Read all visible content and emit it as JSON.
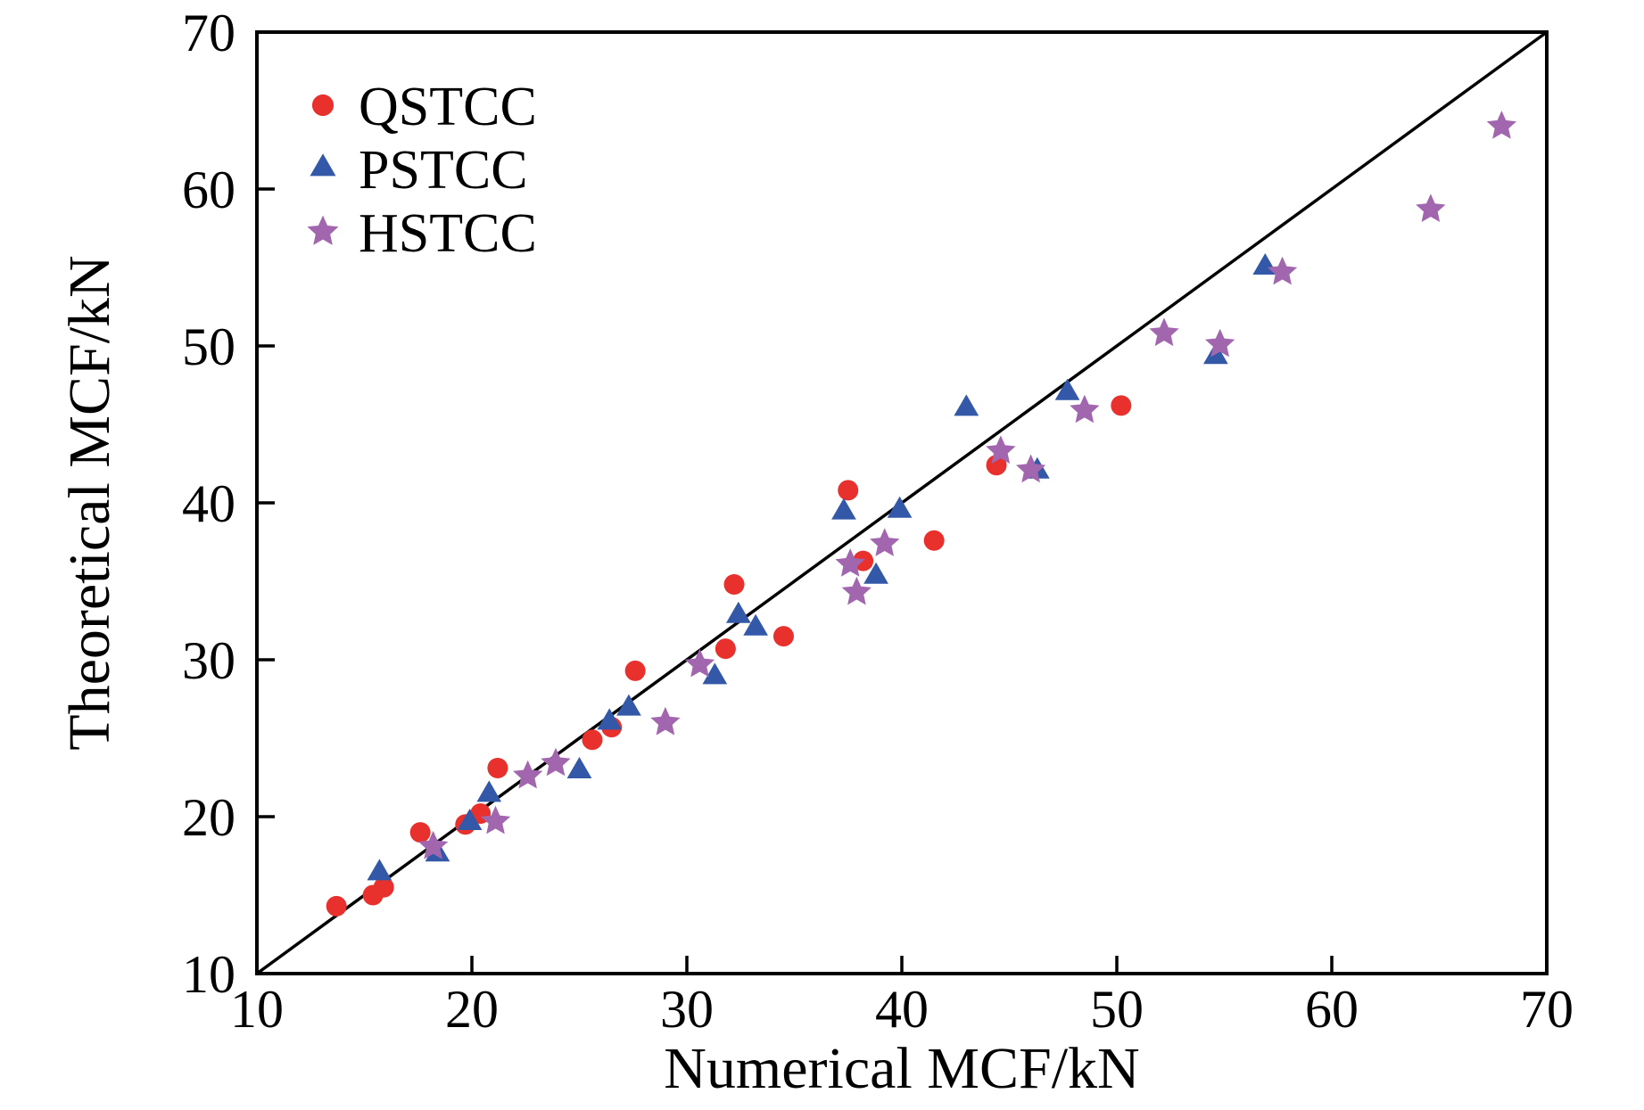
{
  "chart_data": {
    "type": "scatter",
    "title": "",
    "xlabel": "Numerical MCF/kN",
    "ylabel": "Theoretical MCF/kN",
    "xlim": [
      10,
      70
    ],
    "ylim": [
      10,
      70
    ],
    "xticks": [
      10,
      20,
      30,
      40,
      50,
      60,
      70
    ],
    "yticks": [
      10,
      20,
      30,
      40,
      50,
      60,
      70
    ],
    "grid": false,
    "legend_position": "upper-left",
    "axis_color": "#000000",
    "identity_line": {
      "from": [
        10,
        10
      ],
      "to": [
        70,
        70
      ],
      "color": "#000000"
    },
    "series": [
      {
        "name": "QSTCC",
        "marker": "circle",
        "color": "#e8302d",
        "points": [
          [
            13.7,
            14.3
          ],
          [
            15.4,
            15.0
          ],
          [
            15.9,
            15.5
          ],
          [
            17.6,
            19.0
          ],
          [
            19.7,
            19.5
          ],
          [
            20.4,
            20.2
          ],
          [
            21.2,
            23.1
          ],
          [
            25.6,
            24.9
          ],
          [
            26.5,
            25.7
          ],
          [
            27.6,
            29.3
          ],
          [
            31.8,
            30.7
          ],
          [
            32.2,
            34.8
          ],
          [
            34.5,
            31.5
          ],
          [
            37.5,
            40.8
          ],
          [
            38.2,
            36.3
          ],
          [
            41.5,
            37.6
          ],
          [
            44.4,
            42.4
          ],
          [
            50.2,
            46.2
          ]
        ]
      },
      {
        "name": "PSTCC",
        "marker": "triangle",
        "color": "#3358a8",
        "points": [
          [
            15.7,
            16.4
          ],
          [
            18.4,
            17.6
          ],
          [
            19.9,
            19.6
          ],
          [
            20.8,
            21.4
          ],
          [
            25.0,
            22.9
          ],
          [
            26.4,
            26.0
          ],
          [
            27.3,
            26.9
          ],
          [
            31.3,
            28.9
          ],
          [
            32.4,
            32.8
          ],
          [
            33.2,
            32.0
          ],
          [
            37.3,
            39.4
          ],
          [
            38.8,
            35.3
          ],
          [
            39.9,
            39.5
          ],
          [
            43.0,
            46.0
          ],
          [
            46.3,
            42.0
          ],
          [
            47.7,
            47.0
          ],
          [
            54.6,
            49.3
          ],
          [
            56.9,
            55.0
          ]
        ]
      },
      {
        "name": "HSTCC",
        "marker": "star",
        "color": "#a266ae",
        "points": [
          [
            18.2,
            18.1
          ],
          [
            21.1,
            19.7
          ],
          [
            22.6,
            22.6
          ],
          [
            23.9,
            23.4
          ],
          [
            29.0,
            26.0
          ],
          [
            30.6,
            29.7
          ],
          [
            37.6,
            36.1
          ],
          [
            37.9,
            34.3
          ],
          [
            39.2,
            37.4
          ],
          [
            44.6,
            43.3
          ],
          [
            46.0,
            42.1
          ],
          [
            48.5,
            45.9
          ],
          [
            52.2,
            50.8
          ],
          [
            54.8,
            50.1
          ],
          [
            57.7,
            54.7
          ],
          [
            64.6,
            58.7
          ],
          [
            67.9,
            64.0
          ]
        ]
      }
    ]
  }
}
